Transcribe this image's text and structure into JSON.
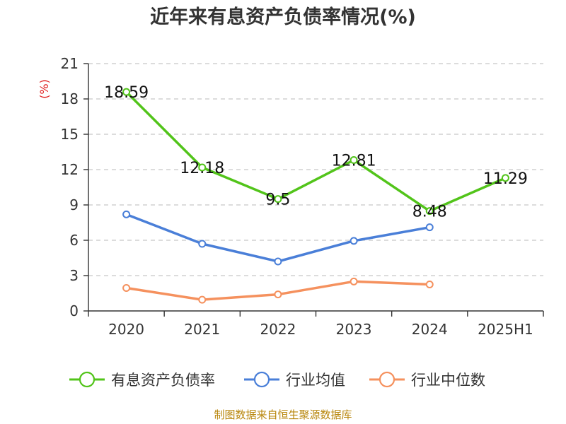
{
  "title": "近年来有息资产负债率情况(%)",
  "source": "制图数据来自恒生聚源数据库",
  "chart_data": {
    "type": "line",
    "title": "近年来有息资产负债率情况(%)",
    "ylabel": "(%)",
    "xlabel": "",
    "categories": [
      "2020",
      "2021",
      "2022",
      "2023",
      "2024",
      "2025H1"
    ],
    "yticks": [
      "0",
      "3",
      "6",
      "9",
      "12",
      "15",
      "18",
      "21"
    ],
    "ylim": [
      0,
      21
    ],
    "grid": true,
    "legend_position": "bottom",
    "series": [
      {
        "name": "有息资产负债率",
        "color": "#52c41a",
        "values": [
          18.59,
          12.18,
          9.5,
          12.81,
          8.48,
          11.29
        ],
        "labels": [
          "18.59",
          "12.18",
          "9.5",
          "12.81",
          "8.48",
          "11.29"
        ],
        "show_labels": true
      },
      {
        "name": "行业均值",
        "color": "#4a7fd8",
        "values": [
          8.2,
          5.7,
          4.2,
          5.95,
          7.1,
          null
        ],
        "show_labels": false
      },
      {
        "name": "行业中位数",
        "color": "#f5915e",
        "values": [
          1.95,
          0.95,
          1.4,
          2.5,
          2.25,
          null
        ],
        "show_labels": false
      }
    ]
  }
}
